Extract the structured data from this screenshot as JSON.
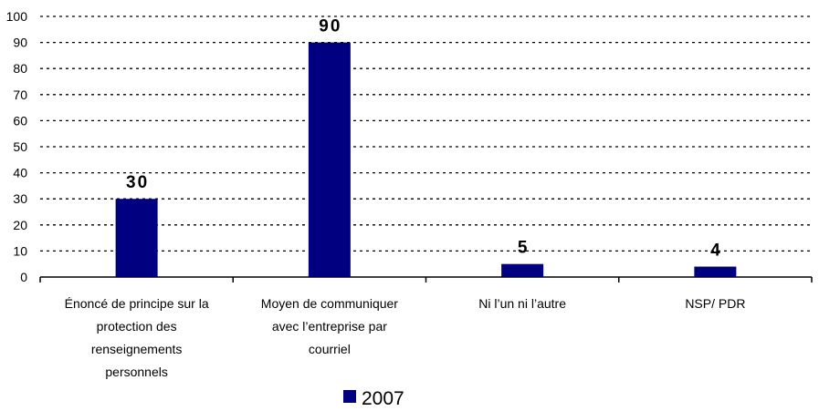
{
  "chart_data": {
    "type": "bar",
    "categories": [
      [
        "Énoncé de principe sur la",
        "protection des",
        "renseignements",
        "personnels"
      ],
      [
        "Moyen de communiquer",
        "avec l’entreprise par",
        "courriel"
      ],
      [
        "Ni l’un ni l’autre"
      ],
      [
        "NSP/ PDR"
      ]
    ],
    "series": [
      {
        "name": "2007",
        "values": [
          30,
          90,
          5,
          4
        ],
        "color": "#000080"
      }
    ],
    "data_labels": [
      "30",
      "90",
      "5",
      "4"
    ],
    "yticks": [
      "0",
      "10",
      "20",
      "30",
      "40",
      "50",
      "60",
      "70",
      "80",
      "90",
      "100"
    ],
    "ylim": [
      0,
      100
    ],
    "grid": "dotted horizontal",
    "legend": "bottom"
  }
}
